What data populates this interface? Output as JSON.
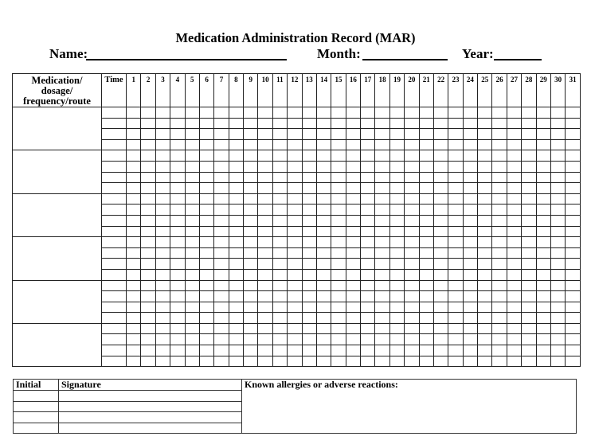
{
  "title": "Medication Administration Record (MAR)",
  "header_fields": {
    "name_label": "Name:",
    "name_value": "",
    "month_label": "Month:",
    "month_value": "",
    "year_label": "Year:",
    "year_value": ""
  },
  "mar_table": {
    "medication_header": [
      "Medication/",
      "dosage/",
      "frequency/route"
    ],
    "time_header": "Time",
    "days": [
      "1",
      "2",
      "3",
      "4",
      "5",
      "6",
      "7",
      "8",
      "9",
      "10",
      "11",
      "12",
      "13",
      "14",
      "15",
      "16",
      "17",
      "18",
      "19",
      "20",
      "21",
      "22",
      "23",
      "24",
      "25",
      "26",
      "27",
      "28",
      "29",
      "30",
      "31"
    ],
    "medications": [
      "",
      "",
      "",
      "",
      "",
      ""
    ],
    "times_per_medication": 4
  },
  "signature_table": {
    "initial_header": "Initial",
    "signature_header": "Signature",
    "allergies_label": "Known allergies or adverse reactions:",
    "rows": [
      "",
      "",
      "",
      ""
    ]
  }
}
